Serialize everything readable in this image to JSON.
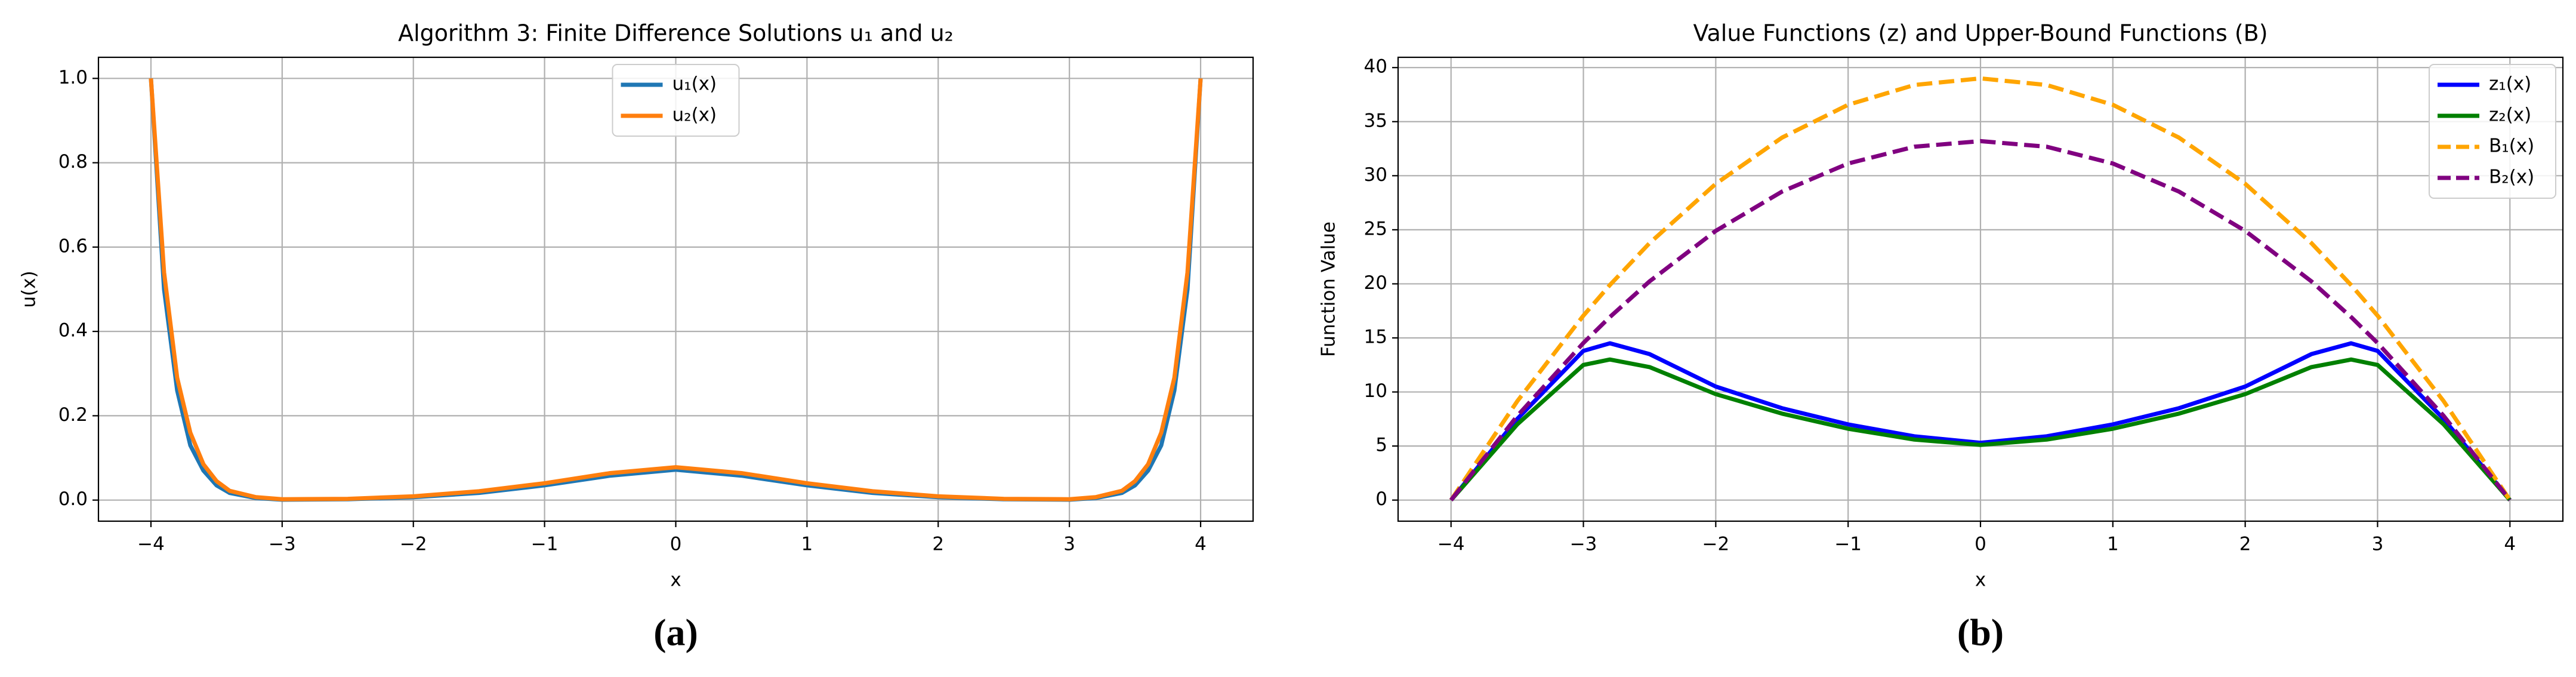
{
  "chart_data": [
    {
      "type": "line",
      "title": "Algorithm 3: Finite Difference Solutions u₁ and u₂",
      "xlabel": "x",
      "ylabel": "u(x)",
      "caption": "(a)",
      "x": [
        -4,
        -3.9,
        -3.8,
        -3.7,
        -3.6,
        -3.5,
        -3.4,
        -3.2,
        -3,
        -2.5,
        -2,
        -1.5,
        -1,
        -0.5,
        0,
        0.5,
        1,
        1.5,
        2,
        2.5,
        3,
        3.2,
        3.4,
        3.5,
        3.6,
        3.7,
        3.8,
        3.9,
        4
      ],
      "series": [
        {
          "name": "u₁(x)",
          "color": "#1f77b4",
          "linestyle": "solid",
          "values": [
            1.0,
            0.5,
            0.26,
            0.13,
            0.07,
            0.035,
            0.017,
            0.005,
            0.001,
            0.002,
            0.007,
            0.017,
            0.035,
            0.058,
            0.072,
            0.058,
            0.035,
            0.017,
            0.007,
            0.002,
            0.001,
            0.005,
            0.017,
            0.035,
            0.07,
            0.13,
            0.26,
            0.5,
            1.0
          ]
        },
        {
          "name": "u₂(x)",
          "color": "#ff7f0e",
          "linestyle": "solid",
          "values": [
            1.0,
            0.54,
            0.29,
            0.16,
            0.085,
            0.045,
            0.022,
            0.007,
            0.002,
            0.003,
            0.009,
            0.021,
            0.04,
            0.064,
            0.078,
            0.064,
            0.04,
            0.021,
            0.009,
            0.003,
            0.002,
            0.007,
            0.022,
            0.045,
            0.085,
            0.16,
            0.29,
            0.54,
            1.0
          ]
        }
      ],
      "xlim": [
        -4.4,
        4.4
      ],
      "ylim": [
        -0.05,
        1.05
      ],
      "xticks": [
        {
          "value": -4,
          "label": "−4"
        },
        {
          "value": -3,
          "label": "−3"
        },
        {
          "value": -2,
          "label": "−2"
        },
        {
          "value": -1,
          "label": "−1"
        },
        0,
        1,
        2,
        3,
        4
      ],
      "yticks": [
        {
          "value": 0,
          "label": "0.0"
        },
        0.2,
        0.4,
        0.6,
        0.8,
        {
          "value": 1,
          "label": "1.0"
        }
      ],
      "grid": true,
      "legend": "upper center"
    },
    {
      "type": "line",
      "title": "Value Functions (z) and Upper-Bound Functions (B)",
      "xlabel": "x",
      "ylabel": "Function Value",
      "caption": "(b)",
      "x": [
        -4,
        -3.5,
        -3,
        -2.8,
        -2.5,
        -2,
        -1.5,
        -1,
        -0.5,
        0,
        0.5,
        1,
        1.5,
        2,
        2.5,
        2.8,
        3,
        3.5,
        4
      ],
      "series": [
        {
          "name": "z₁(x)",
          "color": "#0000ff",
          "linestyle": "solid",
          "values": [
            0,
            7.5,
            13.8,
            14.5,
            13.5,
            10.5,
            8.5,
            7,
            5.9,
            5.3,
            5.9,
            7,
            8.5,
            10.5,
            13.5,
            14.5,
            13.8,
            7.5,
            0
          ]
        },
        {
          "name": "z₂(x)",
          "color": "#008000",
          "linestyle": "solid",
          "values": [
            0,
            7,
            12.5,
            13,
            12.3,
            9.8,
            8,
            6.6,
            5.6,
            5.1,
            5.6,
            6.6,
            8,
            9.8,
            12.3,
            13,
            12.5,
            7,
            0
          ]
        },
        {
          "name": "B₁(x)",
          "color": "#ffa500",
          "linestyle": "dashed",
          "values": [
            0,
            9.14,
            17.06,
            19.89,
            23.77,
            29.25,
            33.52,
            36.56,
            38.39,
            39,
            38.39,
            36.56,
            33.52,
            29.25,
            23.77,
            19.89,
            17.06,
            9.14,
            0
          ]
        },
        {
          "name": "B₂(x)",
          "color": "#800080",
          "linestyle": "dashed",
          "values": [
            0,
            7.78,
            14.53,
            16.93,
            20.23,
            24.9,
            28.53,
            31.13,
            32.68,
            33.2,
            32.68,
            31.13,
            28.53,
            24.9,
            20.23,
            16.93,
            14.53,
            7.78,
            0
          ]
        }
      ],
      "xlim": [
        -4.4,
        4.4
      ],
      "ylim": [
        -1.95,
        40.95
      ],
      "xticks": [
        {
          "value": -4,
          "label": "−4"
        },
        {
          "value": -3,
          "label": "−3"
        },
        {
          "value": -2,
          "label": "−2"
        },
        {
          "value": -1,
          "label": "−1"
        },
        0,
        1,
        2,
        3,
        4
      ],
      "yticks": [
        0,
        5,
        10,
        15,
        20,
        25,
        30,
        35,
        40
      ],
      "grid": true,
      "legend": "upper right"
    }
  ]
}
